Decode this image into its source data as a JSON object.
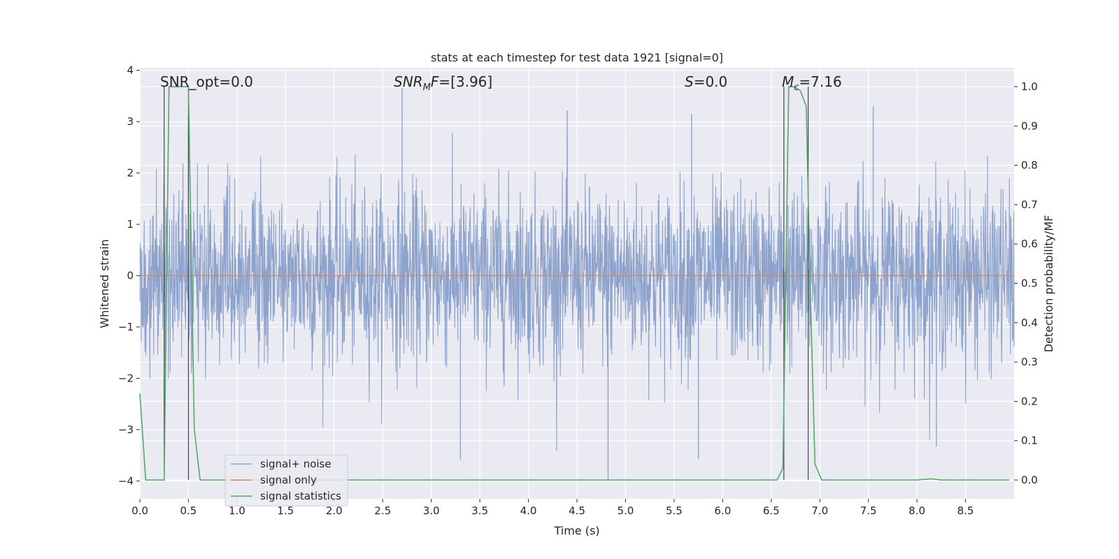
{
  "chart_data": {
    "type": "line",
    "title": "stats at each timestep for test data 1921 [signal=0]",
    "xlabel": "Time (s)",
    "ylabel": "Whitened strain",
    "y2label": "Detection probability/MF",
    "xlim": [
      0.0,
      9.0
    ],
    "ylim": [
      -4.35,
      4.05
    ],
    "y2lim": [
      -0.048,
      1.048
    ],
    "x_ticks": [
      "0.0",
      "0.5",
      "1.0",
      "1.5",
      "2.0",
      "2.5",
      "3.0",
      "3.5",
      "4.0",
      "4.5",
      "5.0",
      "5.5",
      "6.0",
      "6.5",
      "7.0",
      "7.5",
      "8.0",
      "8.5"
    ],
    "y_ticks": [
      "4",
      "3",
      "2",
      "1",
      "0",
      "−1",
      "−2",
      "−3",
      "−4"
    ],
    "y2_ticks": [
      "1.0",
      "0.9",
      "0.8",
      "0.7",
      "0.6",
      "0.5",
      "0.4",
      "0.3",
      "0.2",
      "0.1",
      "0.0"
    ],
    "grid": true,
    "legend_position": "lower-left",
    "annotations": {
      "snr_opt": "SNR_opt=0.0",
      "snr_mf": "[3.96]",
      "s_value": "=0.0",
      "mc_value": "=7.16"
    },
    "vertical_markers_x": [
      0.25,
      0.5,
      6.63,
      6.88
    ],
    "series": [
      {
        "name": "signal+ noise",
        "color": "#8ea3cc",
        "axis": "left",
        "description_points": "dense noise, std ~0.8, peaks up to 3.65 and down to -4.0",
        "envelope_peaks": [
          {
            "x": 0.5,
            "y": 3.1
          },
          {
            "x": 2.7,
            "y": 3.65
          },
          {
            "x": 3.3,
            "y": -3.58
          },
          {
            "x": 4.4,
            "y": 3.22
          },
          {
            "x": 4.82,
            "y": -4.0
          },
          {
            "x": 5.68,
            "y": 3.15
          },
          {
            "x": 5.75,
            "y": -3.57
          },
          {
            "x": 7.55,
            "y": 3.3
          },
          {
            "x": 8.2,
            "y": -3.33
          }
        ]
      },
      {
        "name": "signal only",
        "color": "#dd8452",
        "axis": "left",
        "x": [
          0.0,
          9.0
        ],
        "y": [
          0.0,
          0.0
        ]
      },
      {
        "name": "signal statistics",
        "color": "#55a868",
        "axis": "right",
        "x": [
          0.0,
          0.06,
          0.12,
          0.18,
          0.25,
          0.3,
          0.35,
          0.4,
          0.45,
          0.5,
          0.56,
          0.62,
          0.7,
          1.0,
          2.0,
          3.0,
          4.0,
          5.0,
          6.0,
          6.56,
          6.62,
          6.68,
          6.74,
          6.8,
          6.86,
          6.9,
          6.95,
          7.02,
          7.5,
          8.0,
          8.15,
          8.25,
          8.5,
          8.95
        ],
        "y": [
          0.22,
          0.0,
          0.0,
          0.0,
          0.0,
          1.0,
          1.0,
          1.0,
          1.0,
          1.0,
          0.13,
          0.0,
          0.0,
          0.0,
          0.0,
          0.0,
          0.0,
          0.0,
          0.0,
          0.0,
          0.03,
          1.0,
          1.0,
          0.99,
          0.95,
          0.5,
          0.04,
          0.0,
          0.0,
          0.0,
          0.003,
          0.0,
          0.0,
          0.0
        ]
      }
    ]
  }
}
